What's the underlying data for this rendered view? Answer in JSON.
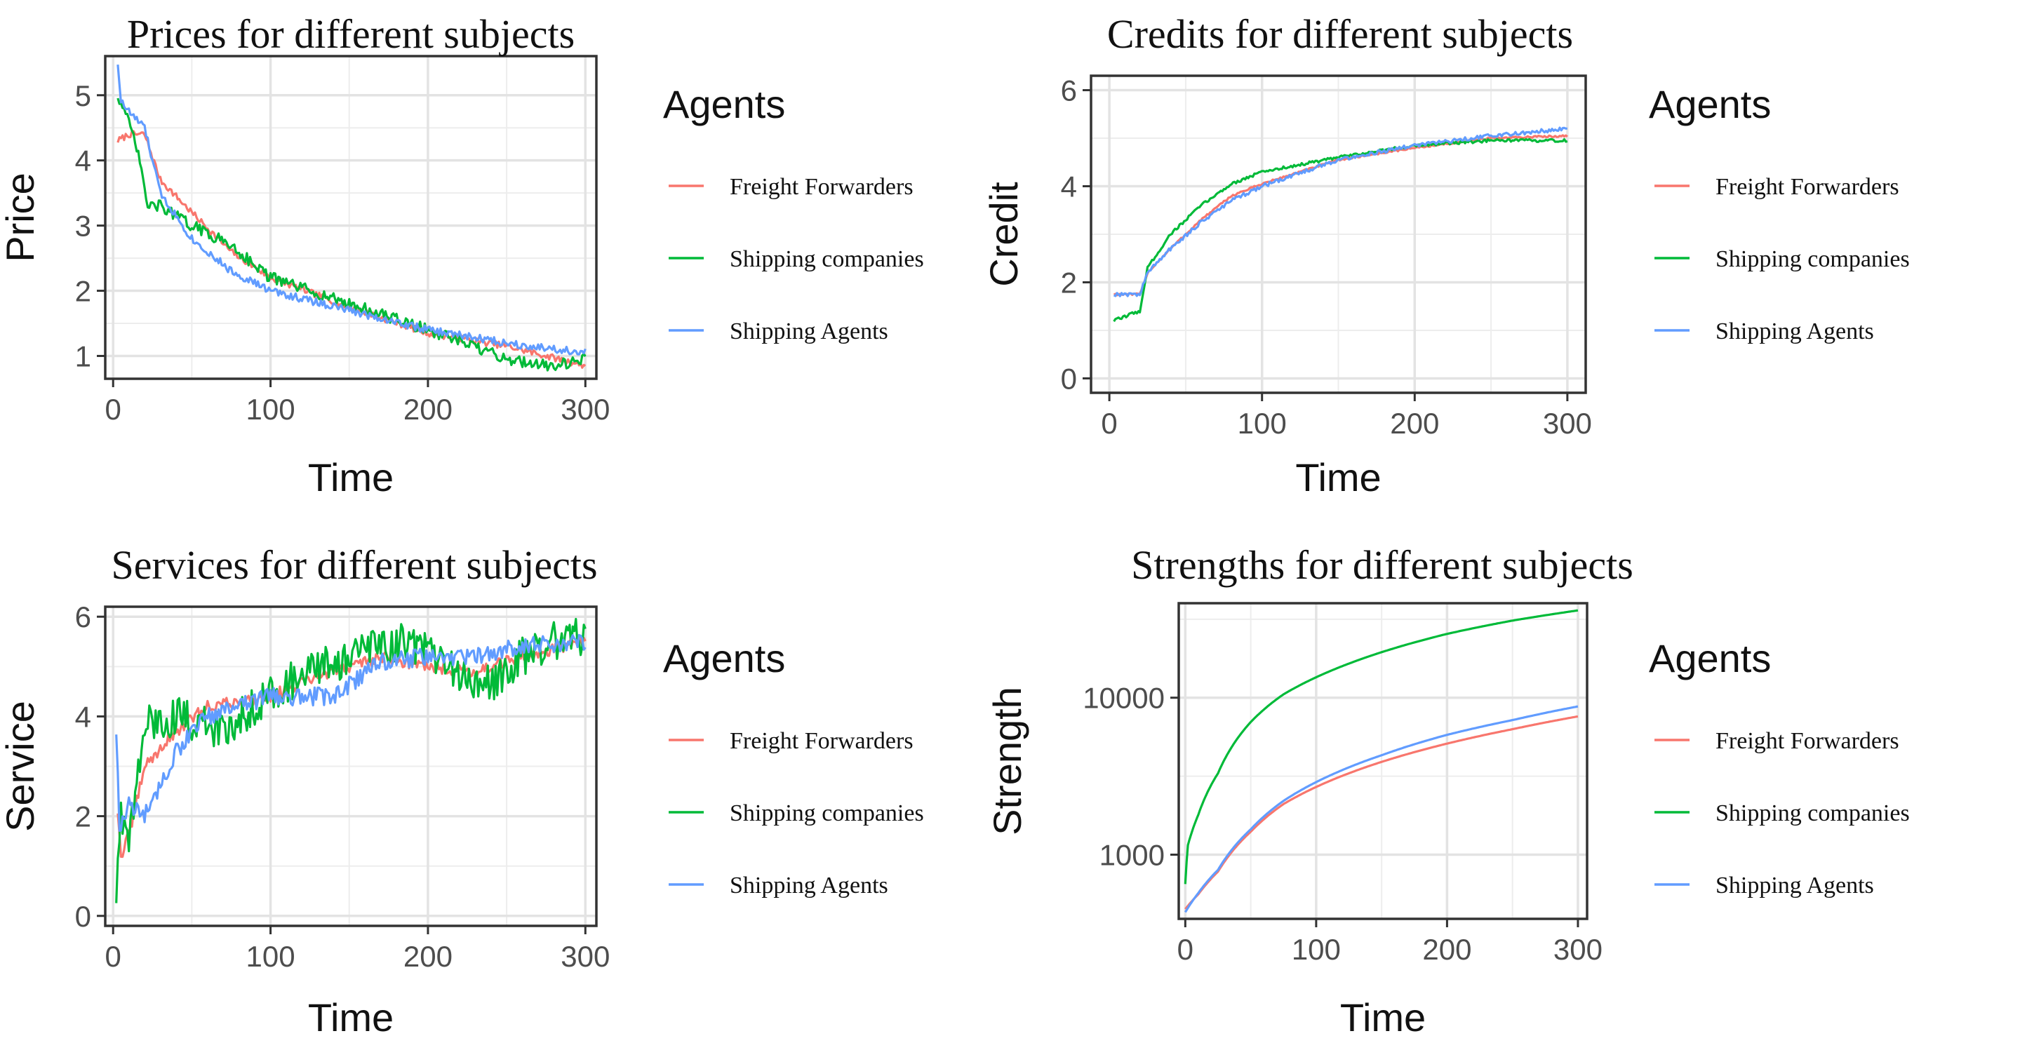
{
  "legend": {
    "title": "Agents",
    "entries": [
      {
        "name": "Freight Forwarders",
        "color": "#F8766D"
      },
      {
        "name": "Shipping companies",
        "color": "#00BA38"
      },
      {
        "name": "Shipping Agents",
        "color": "#619CFF"
      }
    ]
  },
  "chart_data": [
    {
      "id": "prices",
      "type": "line",
      "title": "Prices for different subjects",
      "xlabel": "Time",
      "ylabel": "Price",
      "xlim": [
        -5,
        307
      ],
      "ylim": [
        0.65,
        5.6
      ],
      "xticks": [
        0,
        100,
        200,
        300
      ],
      "yticks": [
        1,
        2,
        3,
        4,
        5
      ],
      "yscale": "linear",
      "series": [
        {
          "name": "Freight Forwarders",
          "color": "#F8766D",
          "noise": 0.05,
          "x": [
            3,
            10,
            20,
            30,
            50,
            75,
            100,
            150,
            200,
            250,
            300
          ],
          "y": [
            4.3,
            4.4,
            4.4,
            3.7,
            3.2,
            2.6,
            2.2,
            1.75,
            1.35,
            1.15,
            0.85
          ]
        },
        {
          "name": "Shipping companies",
          "color": "#00BA38",
          "noise": 0.09,
          "x": [
            3,
            8,
            15,
            22,
            30,
            50,
            75,
            100,
            150,
            200,
            250,
            280,
            300
          ],
          "y": [
            5.0,
            4.7,
            4.2,
            3.3,
            3.3,
            3.0,
            2.7,
            2.2,
            1.8,
            1.4,
            0.95,
            0.85,
            0.95
          ]
        },
        {
          "name": "Shipping Agents",
          "color": "#619CFF",
          "noise": 0.06,
          "x": [
            3,
            5,
            10,
            20,
            30,
            50,
            75,
            100,
            150,
            200,
            250,
            300
          ],
          "y": [
            5.5,
            4.9,
            4.75,
            4.5,
            3.5,
            2.8,
            2.3,
            2.0,
            1.7,
            1.4,
            1.2,
            1.05
          ]
        }
      ]
    },
    {
      "id": "credits",
      "type": "line",
      "title": "Credits for different subjects",
      "xlabel": "Time",
      "ylabel": "Credit",
      "xlim": [
        -12,
        312
      ],
      "ylim": [
        -0.3,
        6.3
      ],
      "xticks": [
        0,
        100,
        200,
        300
      ],
      "yticks": [
        0,
        2,
        4,
        6
      ],
      "yscale": "linear",
      "series": [
        {
          "name": "Freight Forwarders",
          "color": "#F8766D",
          "noise": 0.02,
          "x": [
            3,
            20,
            25,
            40,
            60,
            80,
            100,
            150,
            200,
            250,
            300
          ],
          "y": [
            1.75,
            1.75,
            2.2,
            2.7,
            3.3,
            3.8,
            4.05,
            4.55,
            4.8,
            5.0,
            5.05
          ]
        },
        {
          "name": "Shipping companies",
          "color": "#00BA38",
          "noise": 0.03,
          "x": [
            3,
            15,
            20,
            25,
            40,
            60,
            80,
            100,
            150,
            200,
            250,
            300
          ],
          "y": [
            1.2,
            1.35,
            1.4,
            2.3,
            3.0,
            3.6,
            4.05,
            4.3,
            4.6,
            4.85,
            4.95,
            4.95
          ]
        },
        {
          "name": "Shipping Agents",
          "color": "#619CFF",
          "noise": 0.04,
          "x": [
            3,
            20,
            25,
            40,
            60,
            80,
            100,
            150,
            200,
            250,
            300
          ],
          "y": [
            1.75,
            1.75,
            2.2,
            2.7,
            3.25,
            3.7,
            4.0,
            4.55,
            4.85,
            5.05,
            5.2
          ]
        }
      ]
    },
    {
      "id": "services",
      "type": "line",
      "title": "Services for different subjects",
      "xlabel": "Time",
      "ylabel": "Service",
      "xlim": [
        -5,
        307
      ],
      "ylim": [
        -0.2,
        6.2
      ],
      "xticks": [
        0,
        100,
        200,
        300
      ],
      "yticks": [
        0,
        2,
        4,
        6
      ],
      "yscale": "linear",
      "series": [
        {
          "name": "Freight Forwarders",
          "color": "#F8766D",
          "noise": 0.12,
          "x": [
            3,
            5,
            10,
            20,
            40,
            60,
            100,
            130,
            170,
            200,
            230,
            260,
            300
          ],
          "y": [
            2.1,
            1.2,
            1.6,
            3.0,
            3.7,
            4.2,
            4.4,
            4.8,
            5.2,
            5.0,
            4.9,
            5.2,
            5.5
          ]
        },
        {
          "name": "Shipping companies",
          "color": "#00BA38",
          "noise": 0.4,
          "x": [
            2,
            5,
            10,
            20,
            40,
            70,
            100,
            120,
            150,
            180,
            200,
            220,
            240,
            260,
            280,
            300
          ],
          "y": [
            0.4,
            2.2,
            1.4,
            3.8,
            4.0,
            3.7,
            4.5,
            4.8,
            5.2,
            5.5,
            5.3,
            4.8,
            4.6,
            5.2,
            5.5,
            5.6
          ]
        },
        {
          "name": "Shipping Agents",
          "color": "#619CFF",
          "noise": 0.18,
          "x": [
            2,
            4,
            10,
            20,
            40,
            60,
            100,
            140,
            170,
            200,
            230,
            260,
            300
          ],
          "y": [
            3.7,
            1.8,
            2.2,
            2.0,
            3.3,
            4.0,
            4.4,
            4.4,
            5.1,
            5.2,
            5.2,
            5.4,
            5.5
          ]
        }
      ]
    },
    {
      "id": "strengths",
      "type": "line",
      "title": "Strengths for different subjects",
      "xlabel": "Time",
      "ylabel": "Strength",
      "xlim": [
        -5,
        307
      ],
      "ylim": [
        390,
        40000
      ],
      "xticks": [
        0,
        100,
        200,
        300
      ],
      "yticks": [
        1000,
        10000
      ],
      "yscale": "log",
      "series": [
        {
          "name": "Freight Forwarders",
          "color": "#F8766D",
          "noise": 0,
          "x": [
            0,
            10,
            25,
            50,
            75,
            100,
            150,
            200,
            250,
            300
          ],
          "y": [
            450,
            560,
            780,
            1400,
            2100,
            2700,
            3900,
            5100,
            6300,
            7600
          ]
        },
        {
          "name": "Shipping companies",
          "color": "#00BA38",
          "noise": 0,
          "x": [
            0,
            2,
            10,
            25,
            50,
            75,
            100,
            150,
            200,
            250,
            300
          ],
          "y": [
            650,
            1150,
            1800,
            3300,
            7000,
            10500,
            13500,
            19500,
            25500,
            31000,
            36000
          ]
        },
        {
          "name": "Shipping Agents",
          "color": "#619CFF",
          "noise": 0,
          "x": [
            0,
            10,
            25,
            50,
            75,
            100,
            150,
            200,
            250,
            300
          ],
          "y": [
            430,
            570,
            800,
            1450,
            2200,
            2900,
            4300,
            5800,
            7200,
            8800
          ]
        }
      ]
    }
  ]
}
